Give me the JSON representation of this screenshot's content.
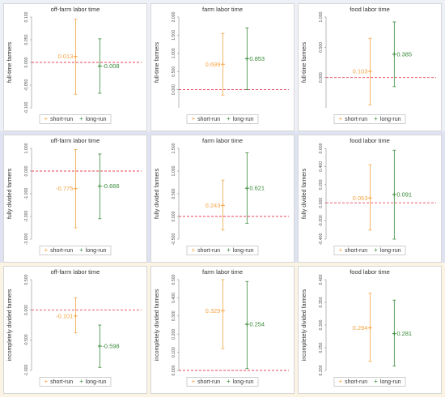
{
  "colors": {
    "short_run": "#f4a443",
    "long_run": "#3a8a3a",
    "reference_line": "#e8435a",
    "row_band_top": "#eef0f8",
    "row_band_middle": "#dfe2f0",
    "row_band_bottom": "#fbf3e4"
  },
  "legend": {
    "short_label": "short-run",
    "long_label": "long-run",
    "marker_icon": "plus-marker-icon"
  },
  "chart_data": [
    {
      "type": "scatter",
      "title": "off-farm labor time",
      "ylabel": "full-time farmers",
      "ylim": [
        -0.1,
        0.1
      ],
      "yticks": [
        "-0.100",
        "-0.050",
        "0.000",
        "0.050",
        "0.100"
      ],
      "reference_y": 0,
      "points": [
        {
          "series": "short-run",
          "value": 0.013,
          "label": "0.013",
          "ci": [
            -0.07,
            0.095
          ]
        },
        {
          "series": "long-run",
          "value": -0.008,
          "label": "-0.008",
          "ci": [
            -0.068,
            0.052
          ]
        }
      ]
    },
    {
      "type": "scatter",
      "title": "farm labor time",
      "ylabel": "full-time farmers",
      "ylim": [
        -0.5,
        2.0
      ],
      "yticks": [
        "0.000",
        "0.500",
        "1.000",
        "1.500",
        "2.000"
      ],
      "reference_y": 0,
      "points": [
        {
          "series": "short-run",
          "value": 0.699,
          "label": "0.699",
          "ci": [
            -0.15,
            1.55
          ]
        },
        {
          "series": "long-run",
          "value": 0.853,
          "label": "0.853",
          "ci": [
            0.0,
            1.7
          ]
        }
      ]
    },
    {
      "type": "scatter",
      "title": "food labor time",
      "ylabel": "full-time farmers",
      "ylim": [
        -0.5,
        1.0
      ],
      "yticks": [
        "0.000",
        "0.500",
        "1.000"
      ],
      "reference_y": 0,
      "points": [
        {
          "series": "short-run",
          "value": 0.103,
          "label": "0.103",
          "ci": [
            -0.45,
            0.65
          ]
        },
        {
          "series": "long-run",
          "value": 0.385,
          "label": "0.385",
          "ci": [
            -0.15,
            0.92
          ]
        }
      ]
    },
    {
      "type": "scatter",
      "title": "off-farm labor time",
      "ylabel": "fully divided farmers",
      "ylim": [
        -3.0,
        1.0
      ],
      "yticks": [
        "-3.000",
        "-2.000",
        "-1.000",
        "0.000",
        "1.000"
      ],
      "reference_y": 0,
      "points": [
        {
          "series": "short-run",
          "value": -0.775,
          "label": "-0.775",
          "ci": [
            -2.5,
            0.95
          ]
        },
        {
          "series": "long-run",
          "value": -0.666,
          "label": "-0.666",
          "ci": [
            -2.1,
            0.75
          ]
        }
      ]
    },
    {
      "type": "scatter",
      "title": "farm labor time",
      "ylabel": "fully divided farmers",
      "ylim": [
        -0.5,
        1.5
      ],
      "yticks": [
        "-0.500",
        "0.000",
        "0.500",
        "1.000",
        "1.500"
      ],
      "reference_y": 0,
      "points": [
        {
          "series": "short-run",
          "value": 0.243,
          "label": "0.243",
          "ci": [
            -0.3,
            0.8
          ]
        },
        {
          "series": "long-run",
          "value": 0.621,
          "label": "0.621",
          "ci": [
            -0.15,
            1.4
          ]
        }
      ]
    },
    {
      "type": "scatter",
      "title": "food labor time",
      "ylabel": "fully divided farmers",
      "ylim": [
        -0.4,
        0.6
      ],
      "yticks": [
        "-0.400",
        "-0.200",
        "0.000",
        "0.200",
        "0.400",
        "0.600"
      ],
      "reference_y": 0,
      "points": [
        {
          "series": "short-run",
          "value": 0.053,
          "label": "0.053",
          "ci": [
            -0.3,
            0.42
          ]
        },
        {
          "series": "long-run",
          "value": 0.091,
          "label": "0.091",
          "ci": [
            -0.4,
            0.58
          ]
        }
      ]
    },
    {
      "type": "scatter",
      "title": "off-farm labor time",
      "ylabel": "incompletely divided farmers",
      "ylim": [
        -1.0,
        0.5
      ],
      "yticks": [
        "-1.000",
        "-0.500",
        "0.000",
        "0.500"
      ],
      "reference_y": 0,
      "points": [
        {
          "series": "short-run",
          "value": -0.101,
          "label": "-0.101",
          "ci": [
            -0.38,
            0.2
          ]
        },
        {
          "series": "long-run",
          "value": -0.598,
          "label": "-0.598",
          "ci": [
            -0.95,
            -0.25
          ]
        }
      ]
    },
    {
      "type": "scatter",
      "title": "farm labor time",
      "ylabel": "incompletely divided farmers",
      "ylim": [
        0.0,
        0.5
      ],
      "yticks": [
        "0.000",
        "0.100",
        "0.200",
        "0.300",
        "0.400",
        "0.500"
      ],
      "reference_y": 0,
      "points": [
        {
          "series": "short-run",
          "value": 0.329,
          "label": "0.329",
          "ci": [
            0.12,
            0.51
          ]
        },
        {
          "series": "long-run",
          "value": 0.254,
          "label": "0.254",
          "ci": [
            0.01,
            0.49
          ]
        }
      ]
    },
    {
      "type": "scatter",
      "title": "food labor time",
      "ylabel": "incompletely divided farmers",
      "ylim": [
        0.2,
        0.4
      ],
      "yticks": [
        "0.200",
        "0.250",
        "0.300",
        "0.350",
        "0.400"
      ],
      "reference_y": null,
      "points": [
        {
          "series": "short-run",
          "value": 0.294,
          "label": "0.294",
          "ci": [
            0.22,
            0.37
          ]
        },
        {
          "series": "long-run",
          "value": 0.281,
          "label": "0.281",
          "ci": [
            0.21,
            0.355
          ]
        }
      ]
    }
  ]
}
